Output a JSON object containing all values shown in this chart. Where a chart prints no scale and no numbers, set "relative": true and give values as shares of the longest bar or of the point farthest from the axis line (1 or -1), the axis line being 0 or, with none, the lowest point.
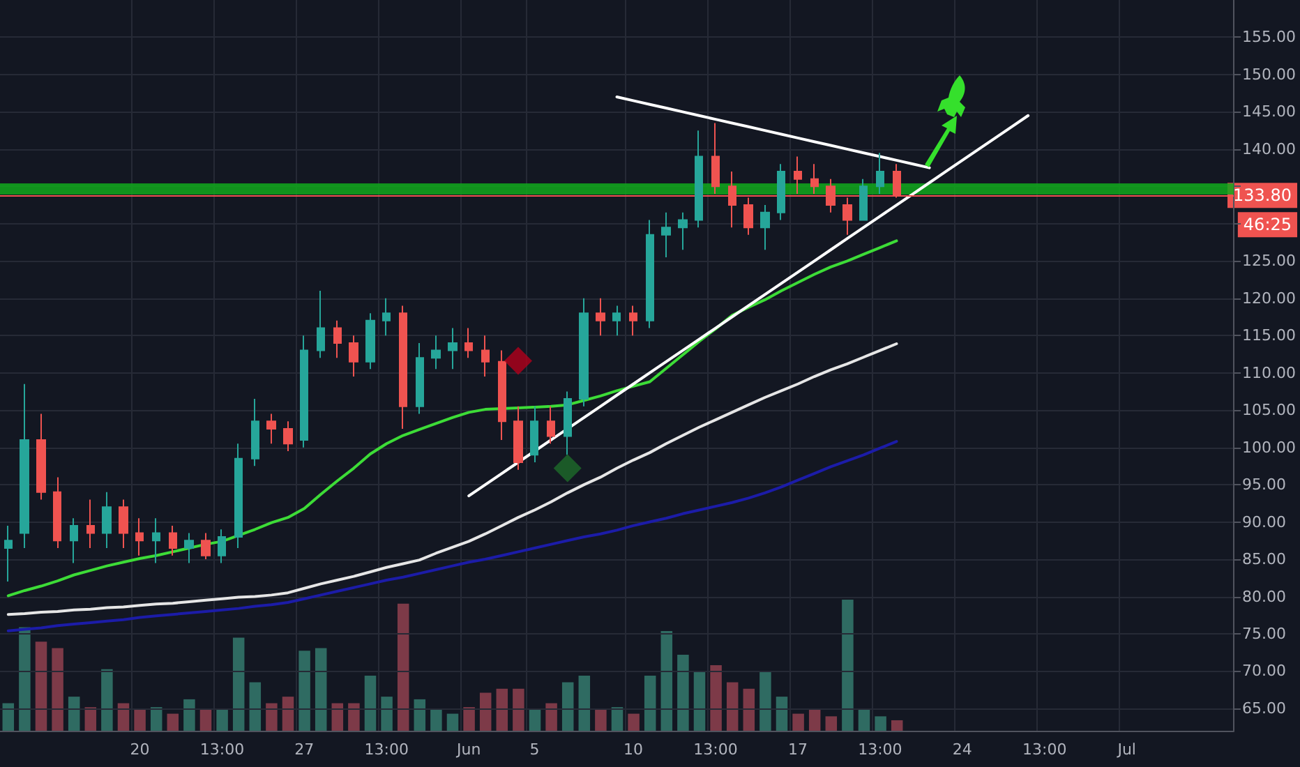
{
  "chart_data": [
    {
      "type": "candlestick",
      "categories": [
        null,
        null,
        null,
        null,
        null,
        null,
        null,
        null,
        "20",
        null,
        null,
        null,
        null,
        "13:00",
        null,
        null,
        null,
        null,
        "27",
        null,
        null,
        null,
        null,
        "13:00",
        null,
        null,
        null,
        null,
        "Jun",
        null,
        null,
        null,
        "5",
        null,
        null,
        null,
        null,
        null,
        "10",
        null,
        null,
        null,
        null,
        "13:00",
        null,
        null,
        null,
        null,
        "17",
        null,
        null,
        null,
        null,
        "13:00",
        null,
        null,
        null,
        null,
        "24",
        null,
        null,
        null,
        null,
        "13:00",
        null,
        null,
        null,
        null,
        "Jul",
        null,
        null,
        null,
        null,
        null,
        null
      ],
      "ohlc": [
        [
          86.5,
          89.5,
          82,
          87.5
        ],
        [
          88.5,
          108.5,
          86.5,
          101
        ],
        [
          101,
          104.5,
          93,
          94
        ],
        [
          94,
          96,
          86.5,
          87.5
        ],
        [
          87.5,
          90.5,
          84.5,
          89.5
        ],
        [
          89.5,
          93,
          86.5,
          88.5
        ],
        [
          88.5,
          94,
          86.5,
          92
        ],
        [
          92,
          93,
          86.5,
          88.5
        ],
        [
          88.5,
          90.5,
          85.5,
          87.5
        ],
        [
          87.5,
          90.5,
          84.5,
          88.5
        ],
        [
          88.5,
          89.5,
          85.5,
          86.5
        ],
        [
          86.5,
          88.5,
          84.5,
          87.5
        ],
        [
          87.5,
          88.5,
          85,
          85.5
        ],
        [
          85.5,
          89,
          84.5,
          88
        ],
        [
          88,
          100.5,
          86.5,
          98.5
        ],
        [
          98.5,
          106.5,
          97.5,
          103.5
        ],
        [
          103.5,
          104.5,
          100.5,
          102.5
        ],
        [
          102.5,
          103.5,
          99.5,
          100.5
        ],
        [
          101,
          115,
          100,
          113
        ],
        [
          113,
          121,
          112,
          116
        ],
        [
          116,
          117,
          112,
          114
        ],
        [
          114,
          115,
          109.5,
          111.5
        ],
        [
          111.5,
          118,
          110.5,
          117
        ],
        [
          117,
          120,
          115,
          118
        ],
        [
          118,
          119,
          102.5,
          105.5
        ],
        [
          105.5,
          114,
          104.5,
          112
        ],
        [
          112,
          115,
          110.5,
          113
        ],
        [
          113,
          116,
          110.5,
          114
        ],
        [
          114,
          116,
          112,
          113
        ],
        [
          113,
          115,
          109.5,
          111.5
        ],
        [
          111.5,
          113,
          101,
          103.5
        ],
        [
          103.5,
          105.5,
          97,
          98
        ],
        [
          99,
          105.5,
          98,
          103.5
        ],
        [
          103.5,
          105.5,
          100.5,
          101.5
        ],
        [
          101.5,
          107.5,
          99,
          106.5
        ],
        [
          106.5,
          120,
          105.5,
          118
        ],
        [
          118,
          120,
          115,
          117
        ],
        [
          117,
          119,
          115,
          118
        ],
        [
          118,
          119,
          115,
          117
        ],
        [
          117,
          130.5,
          116,
          128.5
        ],
        [
          128.5,
          131.5,
          125.5,
          129.5
        ],
        [
          129.5,
          131.5,
          126.5,
          130.5
        ],
        [
          130.5,
          142.5,
          129.5,
          139
        ],
        [
          139,
          143.5,
          134,
          135
        ],
        [
          135,
          137,
          129.5,
          132.5
        ],
        [
          132.5,
          133.5,
          128.5,
          129.5
        ],
        [
          129.5,
          132.5,
          126.5,
          131.5
        ],
        [
          131.5,
          138,
          130.5,
          137
        ],
        [
          137,
          139,
          134,
          136
        ],
        [
          136,
          138,
          134,
          135
        ],
        [
          135,
          136,
          131.5,
          132.5
        ],
        [
          132.5,
          133.5,
          128.5,
          130.5
        ],
        [
          130.5,
          136,
          130.5,
          135
        ],
        [
          135,
          139.5,
          134,
          137
        ],
        [
          137,
          138,
          133.5,
          133.8
        ],
        null,
        null,
        null,
        null,
        null,
        null,
        null,
        null,
        null,
        null,
        null,
        null,
        null,
        null,
        null,
        null,
        null,
        null,
        null,
        null
      ],
      "colors": [
        "#26a69a",
        "#26a69a",
        "#ef5350",
        "#ef5350",
        "#26a69a",
        "#ef5350",
        "#26a69a",
        "#ef5350",
        "#ef5350",
        "#26a69a",
        "#ef5350",
        "#26a69a",
        "#ef5350",
        "#26a69a",
        "#26a69a",
        "#26a69a",
        "#ef5350",
        "#ef5350",
        "#26a69a",
        "#26a69a",
        "#ef5350",
        "#ef5350",
        "#26a69a",
        "#26a69a",
        "#ef5350",
        "#26a69a",
        "#26a69a",
        "#26a69a",
        "#ef5350",
        "#ef5350",
        "#ef5350",
        "#ef5350",
        "#26a69a",
        "#ef5350",
        "#26a69a",
        "#26a69a",
        "#ef5350",
        "#26a69a",
        "#ef5350",
        "#26a69a",
        "#26a69a",
        "#26a69a",
        "#26a69a",
        "#ef5350",
        "#ef5350",
        "#ef5350",
        "#26a69a",
        "#26a69a",
        "#ef5350",
        "#ef5350",
        "#ef5350",
        "#ef5350",
        "#26a69a",
        "#26a69a",
        "#ef5350",
        null,
        null,
        null,
        null,
        null,
        null,
        null,
        null,
        null,
        null,
        null,
        null,
        null,
        null,
        null,
        null,
        null,
        null,
        null,
        null
      ],
      "series": [
        {
          "type": "line",
          "color": "#e6e6e6",
          "values": [
            77.6,
            77.7,
            77.9,
            78,
            78.2,
            78.3,
            78.5,
            78.6,
            78.8,
            79,
            79.1,
            79.3,
            79.5,
            79.7,
            79.9,
            80,
            80.2,
            80.5,
            81.1,
            81.7,
            82.2,
            82.7,
            83.3,
            83.9,
            84.4,
            84.9,
            85.8,
            86.6,
            87.4,
            88.4,
            89.5,
            90.6,
            91.6,
            92.7,
            93.9,
            95,
            96,
            97.2,
            98.3,
            99.3,
            100.5,
            101.6,
            102.7,
            103.7,
            104.7,
            105.7,
            106.7,
            107.6,
            108.5,
            109.5,
            110.4,
            111.2,
            112.1,
            113,
            113.9,
            null,
            null,
            null,
            null,
            null,
            null,
            null,
            null,
            null,
            null,
            null,
            null,
            null,
            null,
            null,
            null,
            null,
            null,
            null,
            null
          ]
        },
        {
          "type": "line",
          "color": "#1c1ca8",
          "values": [
            75.4,
            75.6,
            75.8,
            76.1,
            76.3,
            76.5,
            76.7,
            76.9,
            77.2,
            77.4,
            77.6,
            77.8,
            78,
            78.2,
            78.4,
            78.7,
            78.9,
            79.2,
            79.7,
            80.2,
            80.7,
            81.2,
            81.7,
            82.2,
            82.6,
            83.1,
            83.6,
            84.1,
            84.6,
            85,
            85.5,
            86,
            86.5,
            87,
            87.5,
            88,
            88.4,
            88.9,
            89.5,
            90,
            90.5,
            91.1,
            91.6,
            92.1,
            92.6,
            93.2,
            93.9,
            94.7,
            95.6,
            96.5,
            97.4,
            98.2,
            99,
            99.9,
            100.8,
            null,
            null,
            null,
            null,
            null,
            null,
            null,
            null,
            null,
            null,
            null,
            null,
            null,
            null,
            null,
            null,
            null,
            null,
            null,
            null
          ]
        },
        {
          "type": "line",
          "color": "#3ddc37",
          "values": [
            80.1,
            80.8,
            81.4,
            82.1,
            82.9,
            83.5,
            84.1,
            84.6,
            85.1,
            85.5,
            86,
            86.5,
            87,
            87.4,
            88.2,
            89,
            89.9,
            90.6,
            91.8,
            93.7,
            95.5,
            97.2,
            99.1,
            100.5,
            101.6,
            102.4,
            103.2,
            104,
            104.7,
            105.1,
            105.2,
            105.3,
            105.4,
            105.5,
            105.7,
            106.3,
            106.9,
            107.6,
            108.2,
            108.8,
            110.6,
            112.4,
            114.2,
            115.9,
            117.7,
            118.8,
            119.8,
            121,
            122.1,
            123.2,
            124.2,
            125,
            125.9,
            126.8,
            127.7,
            null,
            null,
            null,
            null,
            null,
            null,
            null,
            null,
            null,
            null,
            null,
            null,
            null,
            null,
            null,
            null,
            null,
            null,
            null,
            null
          ]
        },
        {
          "type": "line",
          "color": "#ffffff",
          "values": [
            null,
            null,
            null,
            null,
            null,
            null,
            null,
            null,
            null,
            null,
            null,
            null,
            null,
            null,
            null,
            null,
            null,
            null,
            null,
            null,
            null,
            null,
            null,
            null,
            null,
            null,
            null,
            null,
            null,
            null,
            null,
            null,
            null,
            null,
            null,
            null,
            null,
            147,
            146.5,
            146,
            145.5,
            145,
            144.5,
            144,
            143.5,
            143,
            142.5,
            142,
            141.5,
            141,
            140.5,
            140,
            139.5,
            139,
            138.5,
            138,
            137.5,
            null,
            null,
            null,
            null,
            null,
            null,
            null,
            null,
            null,
            null,
            null,
            null,
            null,
            null,
            null,
            null,
            null,
            null
          ]
        },
        {
          "type": "line",
          "color": "#ffffff",
          "values": [
            null,
            null,
            null,
            null,
            null,
            null,
            null,
            null,
            null,
            null,
            null,
            null,
            null,
            null,
            null,
            null,
            null,
            null,
            null,
            null,
            null,
            null,
            null,
            null,
            null,
            null,
            null,
            null,
            93.5,
            95,
            96.5,
            98,
            99.5,
            101,
            102.5,
            104,
            105.5,
            107,
            108.5,
            110,
            111.5,
            113,
            114.5,
            116,
            117.5,
            119,
            120.5,
            122,
            123.5,
            125,
            126.5,
            128,
            129.5,
            131,
            132.5,
            134,
            135.5,
            137,
            138.5,
            140,
            141.5,
            143,
            144.5,
            null,
            null,
            null,
            null,
            null,
            null,
            null,
            null,
            null,
            null,
            null,
            null
          ]
        },
        {
          "type": "scatter",
          "marker": "diamond",
          "color": "#b3001b",
          "values": [
            null,
            null,
            null,
            null,
            null,
            null,
            null,
            null,
            null,
            null,
            null,
            null,
            null,
            null,
            null,
            null,
            null,
            null,
            null,
            null,
            null,
            null,
            null,
            null,
            null,
            null,
            null,
            null,
            null,
            null,
            null,
            111.6,
            null,
            null,
            null,
            null,
            null,
            null,
            null,
            null,
            null,
            null,
            null,
            null,
            null,
            null,
            null,
            null,
            null,
            null,
            null,
            null,
            null,
            null,
            null,
            null,
            null,
            null,
            null,
            null,
            null,
            null,
            null,
            null,
            null,
            null,
            null,
            null,
            null,
            null,
            null,
            null,
            null,
            null,
            null
          ]
        },
        {
          "type": "scatter",
          "marker": "diamond",
          "color": "#1e6b2a",
          "values": [
            null,
            null,
            null,
            null,
            null,
            null,
            null,
            null,
            null,
            null,
            null,
            null,
            null,
            null,
            null,
            null,
            null,
            null,
            null,
            null,
            null,
            null,
            null,
            null,
            null,
            null,
            null,
            null,
            null,
            null,
            null,
            null,
            null,
            null,
            97.2,
            null,
            null,
            null,
            null,
            null,
            null,
            null,
            null,
            null,
            null,
            null,
            null,
            null,
            null,
            null,
            null,
            null,
            null,
            null,
            null,
            null,
            null,
            null,
            null,
            null,
            null,
            null,
            null,
            null,
            null,
            null,
            null,
            null,
            null,
            null,
            null,
            null,
            null,
            null,
            null
          ]
        }
      ],
      "ylim": [
        62,
        160
      ],
      "yticks": [
        {
          "value": 65,
          "label": "65.00"
        },
        {
          "value": 70,
          "label": "70.00"
        },
        {
          "value": 75,
          "label": "75.00"
        },
        {
          "value": 80,
          "label": "80.00"
        },
        {
          "value": 85,
          "label": "85.00"
        },
        {
          "value": 90,
          "label": "90.00"
        },
        {
          "value": 95,
          "label": "95.00"
        },
        {
          "value": 100,
          "label": "100.00"
        },
        {
          "value": 105,
          "label": "105.00"
        },
        {
          "value": 110,
          "label": "110.00"
        },
        {
          "value": 115,
          "label": "115.00"
        },
        {
          "value": 120,
          "label": "120.00"
        },
        {
          "value": 125,
          "label": "125.00"
        },
        {
          "value": 130,
          "label": null
        },
        {
          "value": 135,
          "label": null
        },
        {
          "value": 140,
          "label": "140.00"
        },
        {
          "value": 145,
          "label": "145.00"
        },
        {
          "value": 150,
          "label": "150.00"
        },
        {
          "value": 155,
          "label": "155.00"
        }
      ],
      "grid": true,
      "ref_lines": [
        {
          "axis": "y",
          "value": 133.8,
          "label": "133.80",
          "color": "#ef5350"
        }
      ],
      "bands": [
        {
          "axis": "y",
          "from": 133.9,
          "to": 135.4,
          "color": "#11a81b"
        }
      ],
      "annotations": [
        "46:25"
      ]
    },
    {
      "type": "bar",
      "relative": true,
      "categories": [
        null,
        null,
        null,
        null,
        null,
        null,
        null,
        null,
        null,
        null,
        null,
        null,
        null,
        null,
        null,
        null,
        null,
        null,
        null,
        null,
        null,
        null,
        null,
        null,
        null,
        null,
        null,
        null,
        null,
        null,
        null,
        null,
        null,
        null,
        null,
        null,
        null,
        null,
        null,
        null,
        null,
        null,
        null,
        null,
        null,
        null,
        null,
        null,
        null,
        null,
        null,
        null,
        null,
        null,
        null,
        null,
        null,
        null,
        null,
        null,
        null,
        null,
        null,
        null,
        null,
        null,
        null,
        null,
        null,
        null,
        null,
        null,
        null,
        null,
        null
      ],
      "values": [
        0.21,
        0.79,
        0.68,
        0.63,
        0.26,
        0.18,
        0.47,
        0.21,
        0.16,
        0.18,
        0.13,
        0.24,
        0.16,
        0.16,
        0.71,
        0.37,
        0.21,
        0.26,
        0.61,
        0.63,
        0.21,
        0.21,
        0.42,
        0.26,
        0.97,
        0.24,
        0.16,
        0.13,
        0.18,
        0.29,
        0.32,
        0.32,
        0.16,
        0.21,
        0.37,
        0.42,
        0.16,
        0.18,
        0.13,
        0.42,
        0.76,
        0.58,
        0.45,
        0.5,
        0.37,
        0.32,
        0.45,
        0.26,
        0.13,
        0.16,
        0.11,
        1,
        0.16,
        0.11,
        0.08,
        null,
        null,
        null,
        null,
        null,
        null,
        null,
        null,
        null,
        null,
        null,
        null,
        null,
        null,
        null,
        null,
        null,
        null,
        null,
        null
      ],
      "colors": [
        "#2f6b62",
        "#2f6b62",
        "#7d3a48",
        "#7d3a48",
        "#2f6b62",
        "#7d3a48",
        "#2f6b62",
        "#7d3a48",
        "#7d3a48",
        "#2f6b62",
        "#7d3a48",
        "#2f6b62",
        "#7d3a48",
        "#2f6b62",
        "#2f6b62",
        "#2f6b62",
        "#7d3a48",
        "#7d3a48",
        "#2f6b62",
        "#2f6b62",
        "#7d3a48",
        "#7d3a48",
        "#2f6b62",
        "#2f6b62",
        "#7d3a48",
        "#2f6b62",
        "#2f6b62",
        "#2f6b62",
        "#7d3a48",
        "#7d3a48",
        "#7d3a48",
        "#7d3a48",
        "#2f6b62",
        "#7d3a48",
        "#2f6b62",
        "#2f6b62",
        "#7d3a48",
        "#2f6b62",
        "#7d3a48",
        "#2f6b62",
        "#2f6b62",
        "#2f6b62",
        "#2f6b62",
        "#7d3a48",
        "#7d3a48",
        "#7d3a48",
        "#2f6b62",
        "#2f6b62",
        "#7d3a48",
        "#7d3a48",
        "#7d3a48",
        "#2f6b62",
        "#2f6b62",
        "#2f6b62",
        "#7d3a48",
        null,
        null,
        null,
        null,
        null,
        null,
        null,
        null,
        null,
        null,
        null,
        null,
        null,
        null,
        null,
        null,
        null,
        null,
        null,
        null
      ]
    }
  ]
}
